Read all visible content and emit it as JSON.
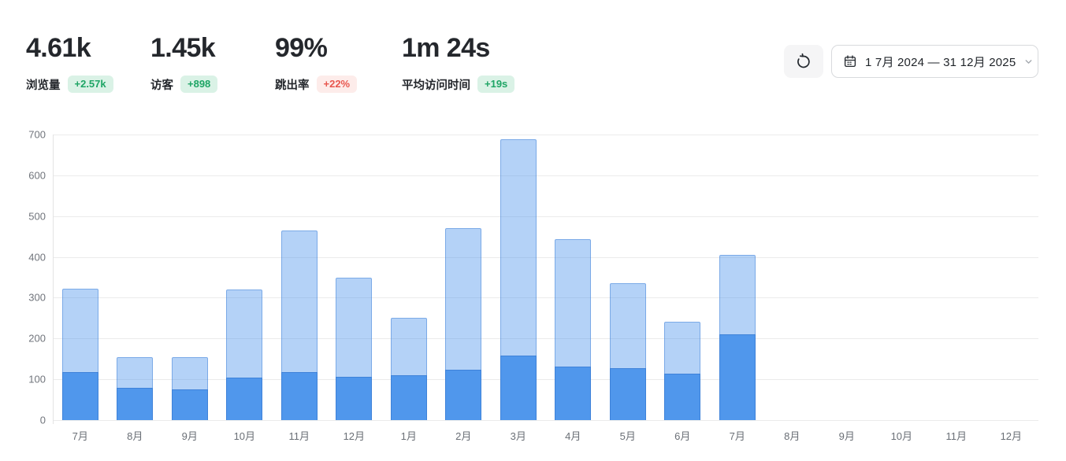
{
  "stats": {
    "items": [
      {
        "value": "4.61k",
        "label": "浏览量",
        "delta": "+2.57k",
        "tone": "green"
      },
      {
        "value": "1.45k",
        "label": "访客",
        "delta": "+898",
        "tone": "green"
      },
      {
        "value": "99%",
        "label": "跳出率",
        "delta": "+22%",
        "tone": "red"
      },
      {
        "value": "1m 24s",
        "label": "平均访问时间",
        "delta": "+19s",
        "tone": "green"
      }
    ]
  },
  "toolbar": {
    "refresh_icon": "rotate-ccw-icon",
    "calendar_icon": "calendar-icon",
    "chevron_icon": "chevron-down-icon",
    "date_range": "1 7月 2024 — 31 12月 2025"
  },
  "colors": {
    "views_bar_fill": "rgba(77,148,235,0.42)",
    "views_bar_hex": "#a9ccf4",
    "visitors_bar": "#5097ec",
    "badge_green_bg": "#daf2e6",
    "badge_green_text": "#1ea565",
    "badge_red_bg": "#fdecea",
    "badge_red_text": "#e8564e",
    "axis_text": "#6a6f76",
    "grid_line": "#ebebeb"
  },
  "chart_data": {
    "type": "bar",
    "stacked": true,
    "title": "",
    "xlabel": "",
    "ylabel": "",
    "categories": [
      "7月",
      "8月",
      "9月",
      "10月",
      "11月",
      "12月",
      "1月",
      "2月",
      "3月",
      "4月",
      "5月",
      "6月",
      "7月",
      "8月",
      "9月",
      "10月",
      "11月",
      "12月"
    ],
    "series": [
      {
        "name": "访客",
        "color": "#5097ec",
        "values": [
          118,
          80,
          76,
          104,
          118,
          106,
          110,
          124,
          158,
          132,
          128,
          114,
          210,
          0,
          0,
          0,
          0,
          0
        ]
      },
      {
        "name": "浏览量",
        "color": "#a9ccf4",
        "values": [
          322,
          154,
          155,
          320,
          465,
          349,
          251,
          471,
          688,
          443,
          336,
          241,
          406,
          0,
          0,
          0,
          0,
          0
        ]
      }
    ],
    "series_note": "浏览量 values are the full bar height (total); 访客 is drawn as the darker overlay from the baseline.",
    "ylim": [
      0,
      700
    ],
    "yticks": [
      0,
      100,
      200,
      300,
      400,
      500,
      600,
      700
    ],
    "grid": "horizontal",
    "legend": "none"
  }
}
